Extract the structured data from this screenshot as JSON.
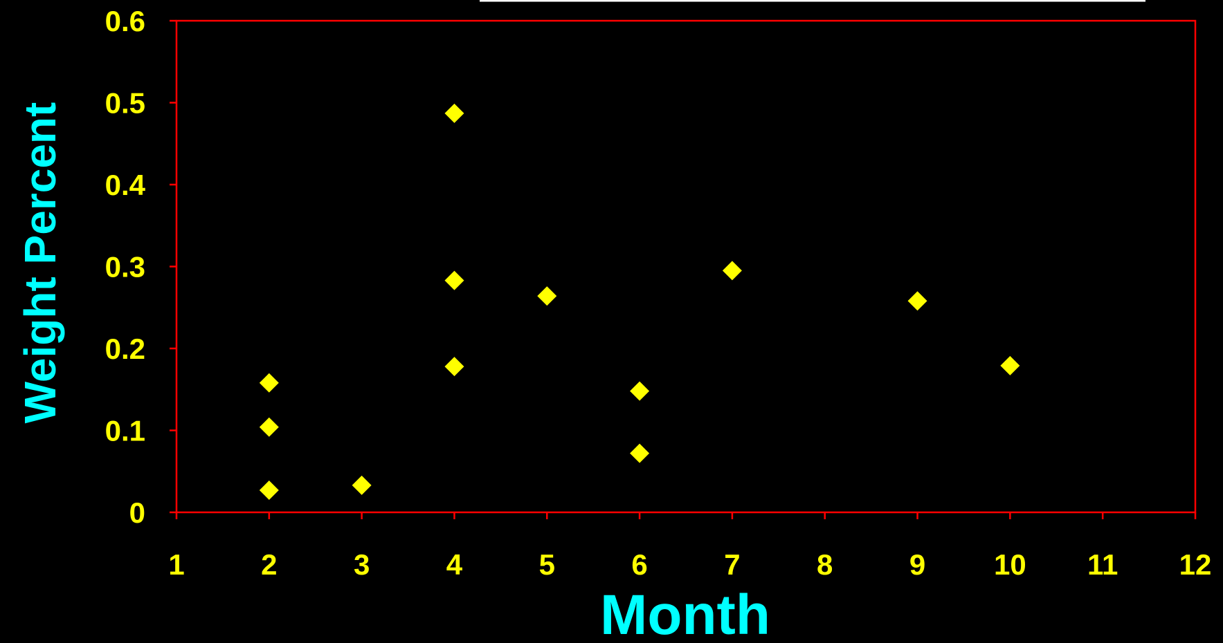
{
  "chart_data": {
    "type": "scatter",
    "title": "",
    "xlabel": "Month",
    "ylabel": "Weight Percent",
    "xlim": [
      1,
      12
    ],
    "ylim": [
      0,
      0.6
    ],
    "x_ticks": [
      "1",
      "2",
      "3",
      "4",
      "5",
      "6",
      "7",
      "8",
      "9",
      "10",
      "11",
      "12"
    ],
    "y_ticks": [
      "0",
      "0.1",
      "0.2",
      "0.3",
      "0.4",
      "0.5",
      "0.6"
    ],
    "grid": false,
    "legend": "none",
    "marker": "diamond",
    "series": [
      {
        "points": [
          {
            "x": 2,
            "y": 0.158
          },
          {
            "x": 2,
            "y": 0.104
          },
          {
            "x": 2,
            "y": 0.027
          },
          {
            "x": 3,
            "y": 0.033
          },
          {
            "x": 4,
            "y": 0.487
          },
          {
            "x": 4,
            "y": 0.283
          },
          {
            "x": 4,
            "y": 0.178
          },
          {
            "x": 5,
            "y": 0.264
          },
          {
            "x": 6,
            "y": 0.148
          },
          {
            "x": 6,
            "y": 0.072
          },
          {
            "x": 7,
            "y": 0.295
          },
          {
            "x": 9,
            "y": 0.258
          },
          {
            "x": 10,
            "y": 0.179
          }
        ]
      }
    ],
    "colors": {
      "background": "#000000",
      "plot_frame": "#ff0000",
      "marker": "#ffff00",
      "tick_labels": "#ffff00",
      "axis_titles": "#00ffff",
      "title_bar": "#ffffff"
    }
  }
}
